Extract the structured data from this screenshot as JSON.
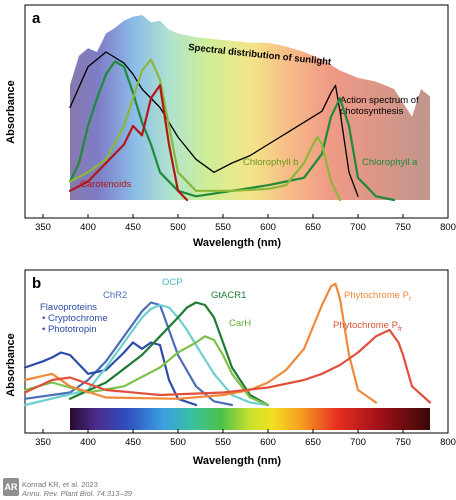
{
  "chart_data": [
    {
      "type": "line",
      "panel_label": "a",
      "xlabel": "Wavelength (nm)",
      "ylabel": "Absorbance",
      "xlim": [
        330,
        800
      ],
      "xticks": [
        350,
        400,
        450,
        500,
        550,
        600,
        650,
        700,
        750,
        800
      ],
      "sunlight_label": "Spectral distribution of sunlight",
      "sunlight_spectrum": {
        "x": [
          380,
          390,
          400,
          410,
          420,
          430,
          440,
          450,
          460,
          470,
          480,
          490,
          500,
          520,
          540,
          560,
          580,
          600,
          620,
          640,
          660,
          680,
          700,
          720,
          740,
          760,
          770,
          780
        ],
        "y": [
          0.62,
          0.78,
          0.82,
          0.8,
          0.9,
          0.93,
          0.97,
          0.99,
          1.0,
          0.96,
          0.97,
          0.92,
          0.9,
          0.88,
          0.87,
          0.86,
          0.85,
          0.85,
          0.83,
          0.8,
          0.76,
          0.7,
          0.66,
          0.64,
          0.6,
          0.45,
          0.6,
          0.56
        ]
      },
      "series": [
        {
          "name": "Action spectrum of photosynthesis",
          "color": "#000000",
          "x": [
            380,
            400,
            420,
            440,
            450,
            460,
            480,
            500,
            520,
            540,
            560,
            580,
            600,
            620,
            640,
            660,
            670,
            675,
            680,
            690,
            700
          ],
          "y": [
            0.5,
            0.72,
            0.8,
            0.74,
            0.68,
            0.6,
            0.5,
            0.34,
            0.22,
            0.15,
            0.2,
            0.24,
            0.3,
            0.36,
            0.42,
            0.48,
            0.58,
            0.62,
            0.48,
            0.15,
            0.02
          ]
        },
        {
          "name": "Chlorophyll a",
          "color": "#1f8a3a",
          "x": [
            380,
            390,
            400,
            410,
            420,
            430,
            440,
            450,
            460,
            470,
            480,
            500,
            520,
            560,
            600,
            620,
            640,
            660,
            670,
            680,
            690,
            700,
            720,
            740
          ],
          "y": [
            0.1,
            0.2,
            0.4,
            0.55,
            0.68,
            0.75,
            0.72,
            0.58,
            0.42,
            0.3,
            0.15,
            0.05,
            0.02,
            0.05,
            0.08,
            0.1,
            0.12,
            0.25,
            0.45,
            0.55,
            0.4,
            0.12,
            0.02,
            0.0
          ]
        },
        {
          "name": "Chlorophyll b",
          "color": "#8ab83a",
          "x": [
            380,
            400,
            420,
            440,
            450,
            460,
            470,
            480,
            490,
            500,
            520,
            560,
            600,
            620,
            640,
            650,
            655,
            660,
            670,
            680
          ],
          "y": [
            0.1,
            0.15,
            0.22,
            0.4,
            0.55,
            0.7,
            0.76,
            0.65,
            0.4,
            0.15,
            0.05,
            0.05,
            0.06,
            0.08,
            0.2,
            0.3,
            0.34,
            0.3,
            0.1,
            0.0
          ]
        },
        {
          "name": "Carotenoids",
          "color": "#b01818",
          "x": [
            380,
            400,
            420,
            440,
            450,
            460,
            470,
            480,
            490,
            500,
            510
          ],
          "y": [
            0.05,
            0.1,
            0.2,
            0.3,
            0.4,
            0.35,
            0.55,
            0.62,
            0.3,
            0.05,
            0.0
          ]
        }
      ],
      "annotations": [
        "Spectral distribution of sunlight",
        "Action spectrum of photosynthesis",
        "Chlorophyll b",
        "Chlorophyll a",
        "Carotenoids"
      ]
    },
    {
      "type": "line",
      "panel_label": "b",
      "xlabel": "Wavelength (nm)",
      "ylabel": "Absorbance",
      "xlim": [
        330,
        800
      ],
      "xticks": [
        350,
        400,
        450,
        500,
        550,
        600,
        650,
        700,
        750,
        800
      ],
      "color_bar_range": [
        380,
        780
      ],
      "series": [
        {
          "name": "ChR2",
          "color": "#4e6db8",
          "x": [
            330,
            380,
            400,
            420,
            440,
            460,
            470,
            480,
            490,
            500,
            520,
            540,
            560
          ],
          "y": [
            0.05,
            0.1,
            0.2,
            0.35,
            0.55,
            0.75,
            0.82,
            0.8,
            0.6,
            0.4,
            0.15,
            0.03,
            0.0
          ]
        },
        {
          "name": "Flavoproteins",
          "color": "#2b4ba8",
          "x": [
            330,
            350,
            360,
            370,
            380,
            400,
            420,
            440,
            450,
            460,
            470,
            480,
            490,
            500,
            520
          ],
          "y": [
            0.3,
            0.35,
            0.38,
            0.42,
            0.4,
            0.25,
            0.28,
            0.42,
            0.5,
            0.45,
            0.5,
            0.48,
            0.2,
            0.05,
            0.0
          ]
        },
        {
          "name": "OCP",
          "color": "#6ccfd0",
          "x": [
            330,
            400,
            420,
            440,
            460,
            470,
            480,
            490,
            500,
            510,
            520,
            540,
            560,
            580,
            600
          ],
          "y": [
            0.0,
            0.12,
            0.3,
            0.5,
            0.7,
            0.77,
            0.8,
            0.78,
            0.7,
            0.6,
            0.48,
            0.25,
            0.08,
            0.02,
            0.0
          ]
        },
        {
          "name": "GtACR1",
          "color": "#1f7a32",
          "x": [
            380,
            420,
            460,
            480,
            500,
            510,
            520,
            530,
            540,
            550,
            560,
            580,
            600
          ],
          "y": [
            0.05,
            0.18,
            0.4,
            0.55,
            0.7,
            0.78,
            0.82,
            0.8,
            0.7,
            0.5,
            0.3,
            0.08,
            0.0
          ]
        },
        {
          "name": "CarH",
          "color": "#7cc24a",
          "x": [
            330,
            360,
            400,
            440,
            480,
            500,
            520,
            530,
            540,
            550,
            560,
            580,
            600
          ],
          "y": [
            0.12,
            0.18,
            0.1,
            0.15,
            0.3,
            0.42,
            0.5,
            0.55,
            0.52,
            0.4,
            0.25,
            0.06,
            0.0
          ]
        },
        {
          "name": "Phytochrome Pr",
          "color": "#f08a3a",
          "x": [
            330,
            360,
            380,
            420,
            500,
            550,
            580,
            600,
            620,
            640,
            660,
            670,
            675,
            680,
            690,
            700,
            720
          ],
          "y": [
            0.2,
            0.25,
            0.15,
            0.06,
            0.05,
            0.08,
            0.12,
            0.18,
            0.28,
            0.45,
            0.8,
            0.95,
            0.97,
            0.85,
            0.4,
            0.12,
            0.02
          ]
        },
        {
          "name": "Phytochrome Pfr",
          "color": "#e0503a",
          "x": [
            330,
            360,
            380,
            420,
            480,
            550,
            600,
            640,
            660,
            680,
            700,
            720,
            735,
            745,
            750,
            760,
            780
          ],
          "y": [
            0.1,
            0.2,
            0.22,
            0.12,
            0.08,
            0.1,
            0.14,
            0.2,
            0.25,
            0.32,
            0.42,
            0.55,
            0.6,
            0.5,
            0.4,
            0.15,
            0.02
          ]
        }
      ],
      "legend_labels": {
        "flavoproteins": "Flavoproteins",
        "cryptochrome": "• Cryptochrome",
        "phototropin": "• Phototropin",
        "chr2": "ChR2",
        "ocp": "OCP",
        "gtacr1": "GtACR1",
        "carh": "CarH",
        "phy_pr": "Phytochrome P",
        "phy_pr_sub": "r",
        "phy_pfr": "Phytochrome P",
        "phy_pfr_sub": "fr"
      }
    }
  ],
  "credit": {
    "logo": "AR",
    "line1": "Konrad KR, et al. 2023",
    "line2": "Annu. Rev. Plant Biol. 74:313–39"
  }
}
